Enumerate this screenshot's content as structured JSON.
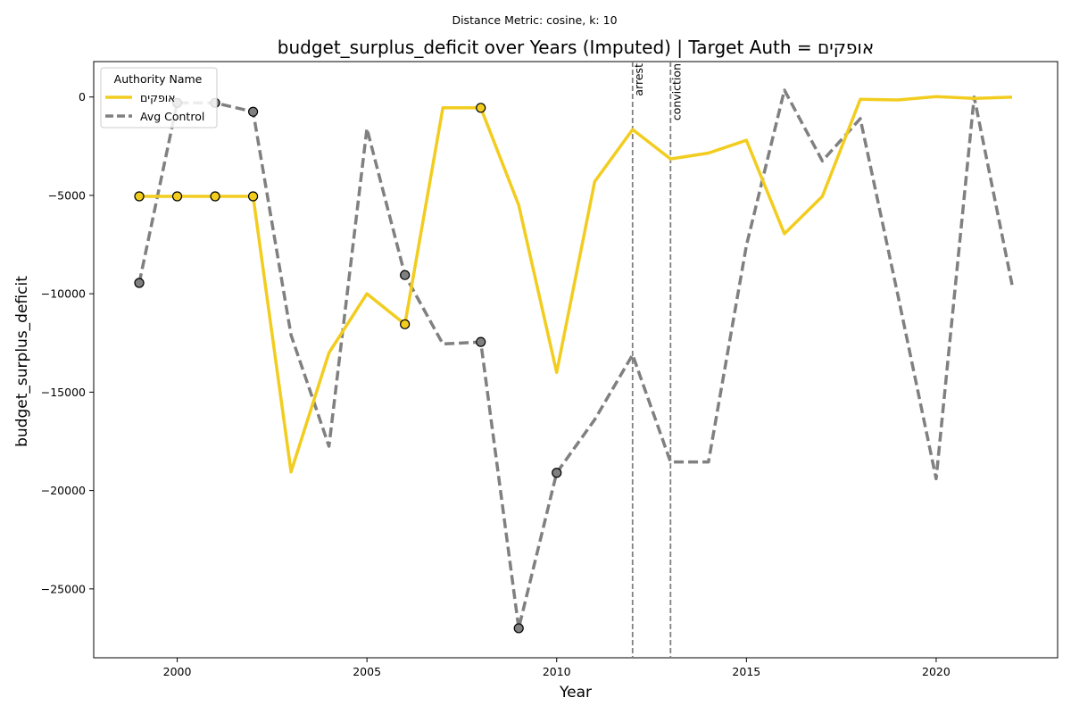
{
  "chart_data": {
    "type": "line",
    "suptitle": "Distance Metric: cosine, k: 10",
    "title": "budget_surplus_deficit over Years (Imputed) | Target Auth = אופקים",
    "xlabel": "Year",
    "ylabel": "budget_surplus_deficit",
    "xlim": [
      1997.8,
      2023.2
    ],
    "ylim": [
      -28500,
      1800
    ],
    "xticks": [
      2000,
      2005,
      2010,
      2015,
      2020
    ],
    "yticks": [
      0,
      -5000,
      -10000,
      -15000,
      -20000,
      -25000
    ],
    "xtick_labels": [
      "2000",
      "2005",
      "2010",
      "2015",
      "2020"
    ],
    "ytick_labels": [
      "0",
      "−5000",
      "−10000",
      "−15000",
      "−20000",
      "−25000"
    ],
    "grid": false,
    "legend": {
      "title": "Authority Name",
      "placement": "top-left",
      "entries": [
        "אופקים",
        "Avg Control"
      ]
    },
    "events": [
      {
        "label": "arrest",
        "year": 2012
      },
      {
        "label": "conviction",
        "year": 2013
      }
    ],
    "series": [
      {
        "name": "אופקים",
        "color": "#f2cd1f",
        "style": "solid",
        "x": [
          1999,
          2000,
          2001,
          2002,
          2003,
          2004,
          2005,
          2006,
          2007,
          2008,
          2009,
          2010,
          2011,
          2012,
          2013,
          2014,
          2015,
          2016,
          2017,
          2018,
          2019,
          2020,
          2021,
          2022
        ],
        "values": [
          -5050,
          -5050,
          -5050,
          -5050,
          -19050,
          -13000,
          -10000,
          -11550,
          -550,
          -550,
          -5500,
          -14000,
          -4300,
          -1650,
          -3150,
          -2850,
          -2200,
          -6950,
          -5050,
          -120,
          -150,
          20,
          -70,
          -10
        ],
        "imputed_x": [
          1999,
          2000,
          2001,
          2002,
          2006,
          2008
        ]
      },
      {
        "name": "Avg Control",
        "color": "#808080",
        "style": "dashed",
        "x": [
          1999,
          2000,
          2001,
          2002,
          2003,
          2004,
          2005,
          2006,
          2007,
          2008,
          2009,
          2010,
          2011,
          2012,
          2013,
          2014,
          2015,
          2016,
          2017,
          2018,
          2019,
          2020,
          2021,
          2022
        ],
        "values": [
          -9450,
          -300,
          -300,
          -750,
          -12100,
          -17750,
          -1600,
          -9050,
          -12550,
          -12450,
          -27000,
          -19100,
          -16400,
          -13100,
          -18550,
          -18550,
          -7550,
          350,
          -3250,
          -1100,
          -10150,
          -19400,
          0,
          -9550
        ],
        "imputed_x": [
          1999,
          2000,
          2001,
          2002,
          2006,
          2008,
          2009,
          2010
        ]
      }
    ]
  }
}
